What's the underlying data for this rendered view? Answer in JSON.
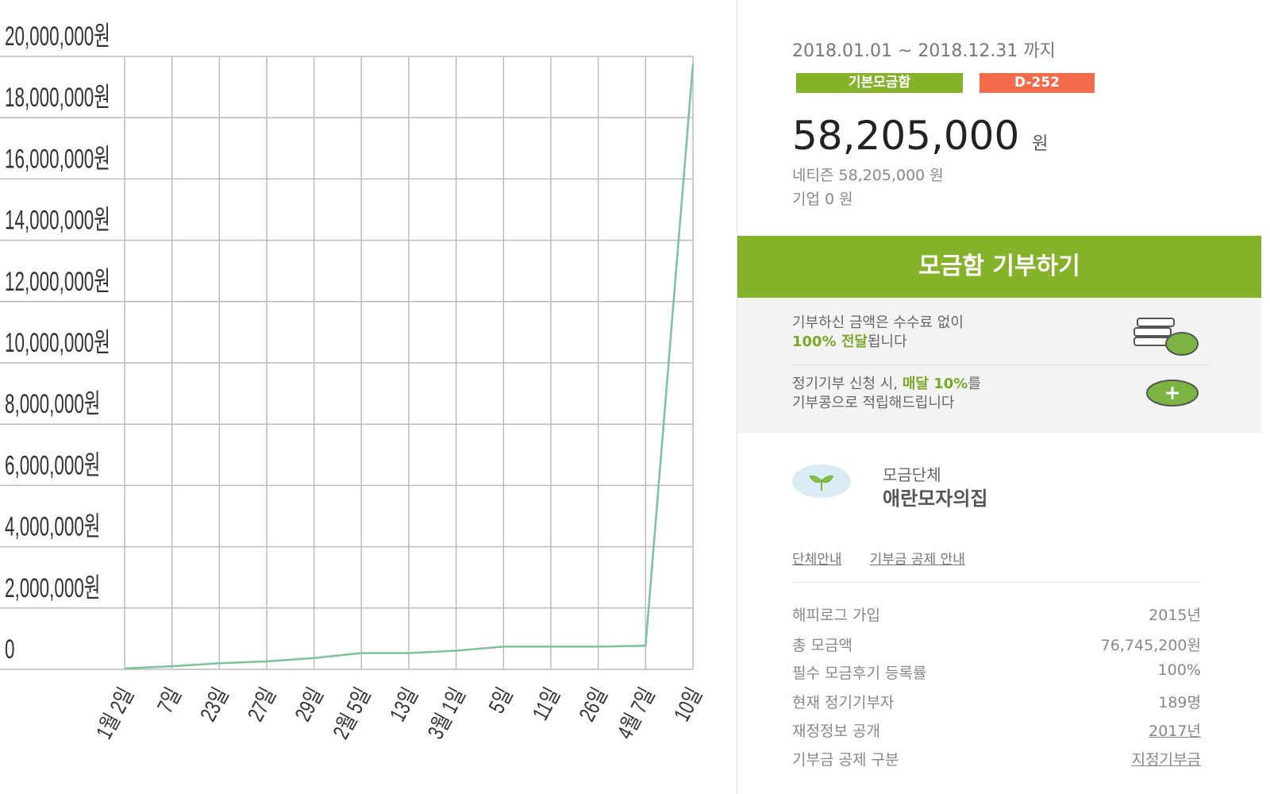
{
  "chart_data": {
    "type": "line",
    "categories": [
      "1월 2일",
      "7일",
      "23일",
      "27일",
      "29일",
      "2월 5일",
      "13일",
      "3월 1일",
      "5일",
      "11일",
      "26일",
      "4월 7일",
      "10일"
    ],
    "series": [
      {
        "color": "#7cc29a",
        "values": [
          30000,
          100000,
          200000,
          260000,
          370000,
          530000,
          530000,
          610000,
          740000,
          740000,
          740000,
          770000,
          19750000
        ]
      }
    ],
    "ylim": [
      0,
      20000000
    ],
    "yticks": [
      0,
      {
        "value": 2000000,
        "label": "2,000,000원"
      },
      {
        "value": 4000000,
        "label": "4,000,000원"
      },
      {
        "value": 6000000,
        "label": "6,000,000원"
      },
      {
        "value": 8000000,
        "label": "8,000,000원"
      },
      {
        "value": 10000000,
        "label": "10,000,000원"
      },
      {
        "value": 12000000,
        "label": "12,000,000원"
      },
      {
        "value": 14000000,
        "label": "14,000,000원"
      },
      {
        "value": 16000000,
        "label": "16,000,000원"
      },
      {
        "value": 18000000,
        "label": "18,000,000원"
      },
      {
        "value": 20000000,
        "label": "20,000,000원"
      }
    ],
    "grid": true
  },
  "panel": {
    "period": "2018.01.01 ~ 2018.12.31 까지",
    "badges": [
      "기본모금함",
      "D-252"
    ],
    "amount": "58,205,000",
    "amount_unit": "원",
    "netizen": "네티즌 58,205,000 원",
    "company": "기업 0 원",
    "button": "모금함 기부하기",
    "notice1": {
      "line1": "기부하신 금액은 수수료 없이",
      "highlight": "100% 전달",
      "rest": "됩니다"
    },
    "notice2": {
      "before": "정기기부 신청 시,",
      "highlight": "매달 10%",
      "after": "를",
      "line2": "기부콩으로 적립해드립니다"
    },
    "org_label": "모금단체",
    "org_name": "애란모자의집",
    "links": [
      "단체안내",
      "기부금 공제 안내"
    ],
    "info": [
      [
        "해피로그 가입",
        "2015년"
      ],
      [
        "총 모금액",
        "76,745,200원"
      ],
      [
        "필수 모금후기 등록률",
        "100%"
      ],
      [
        "현재 정기기부자",
        "189명"
      ],
      [
        "재정정보 공개",
        "2017년"
      ],
      [
        "기부금 공제 구분",
        "지정기부금"
      ]
    ]
  }
}
